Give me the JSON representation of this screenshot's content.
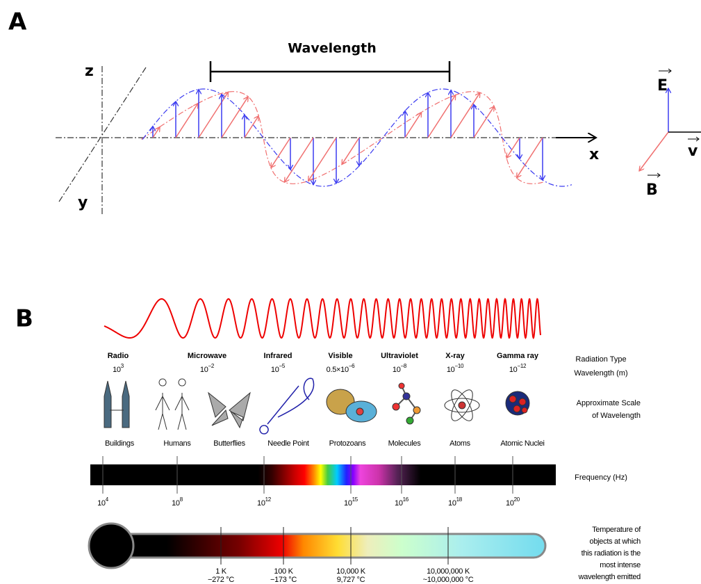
{
  "panel_a": {
    "label": "A",
    "wavelength_label": "Wavelength",
    "axis_z": "z",
    "axis_y": "y",
    "axis_x": "x",
    "vector_e": "E",
    "vector_v": "v",
    "vector_b": "B"
  },
  "panel_b": {
    "label": "B",
    "radiation_types": [
      {
        "name": "Radio",
        "wavelength_base": "10",
        "wavelength_exp": "3"
      },
      {
        "name": "Microwave",
        "wavelength_base": "10",
        "wavelength_exp": "−2"
      },
      {
        "name": "Infrared",
        "wavelength_base": "10",
        "wavelength_exp": "−5"
      },
      {
        "name": "Visible",
        "wavelength_base": "0.5×10",
        "wavelength_exp": "−6"
      },
      {
        "name": "Ultraviolet",
        "wavelength_base": "10",
        "wavelength_exp": "−8"
      },
      {
        "name": "X-ray",
        "wavelength_base": "10",
        "wavelength_exp": "−10"
      },
      {
        "name": "Gamma ray",
        "wavelength_base": "10",
        "wavelength_exp": "−12"
      }
    ],
    "scale_objects": [
      "Buildings",
      "Humans",
      "Butterflies",
      "Needle Point",
      "Protozoans",
      "Molecules",
      "Atoms",
      "Atomic Nuclei"
    ],
    "row_label_radiation": "Radiation Type",
    "row_label_wavelength": "Wavelength (m)",
    "row_label_scale": [
      "Approximate Scale",
      "of Wavelength"
    ],
    "row_label_frequency": "Frequency (Hz)",
    "frequency_ticks": [
      {
        "base": "10",
        "exp": "4"
      },
      {
        "base": "10",
        "exp": "8"
      },
      {
        "base": "10",
        "exp": "12"
      },
      {
        "base": "10",
        "exp": "15"
      },
      {
        "base": "10",
        "exp": "16"
      },
      {
        "base": "10",
        "exp": "18"
      },
      {
        "base": "10",
        "exp": "20"
      }
    ],
    "temperatures": [
      {
        "kelvin": "1 K",
        "celsius": "−272 °C"
      },
      {
        "kelvin": "100 K",
        "celsius": "−173 °C"
      },
      {
        "kelvin": "10,000 K",
        "celsius": "9,727 °C"
      },
      {
        "kelvin": "10,000,000 K",
        "celsius": "~10,000,000 °C"
      }
    ],
    "row_label_temperature": [
      "Temperature of",
      "objects at which",
      "this radiation is the",
      "most intense",
      "wavelength emitted"
    ]
  }
}
